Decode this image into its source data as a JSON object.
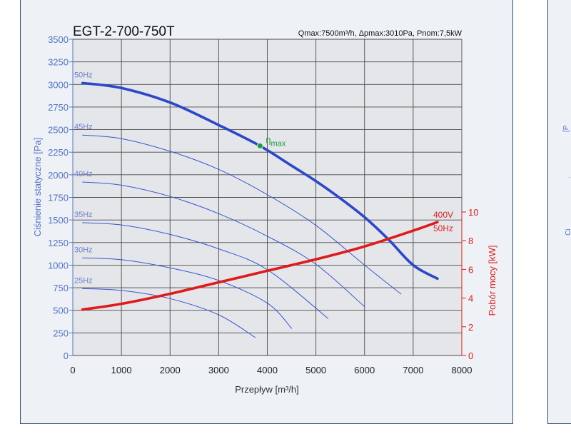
{
  "chart_data": {
    "type": "line",
    "title": "EGT-2-700-750T",
    "subtitle": "Qmax:7500m³/h, Δpmax:3010Pa, Pnom:7,5kW",
    "xlabel": "Przepływ [m³/h]",
    "ylabel": "Ciśnienie statyczne [Pa]",
    "y2label": "Pobór mocy [kW]",
    "xlim": [
      0,
      8000
    ],
    "ylim": [
      0,
      3500
    ],
    "y2lim": [
      0,
      10
    ],
    "x_ticks": [
      0,
      1000,
      2000,
      3000,
      4000,
      5000,
      6000,
      7000,
      8000
    ],
    "y_ticks": [
      0,
      250,
      500,
      750,
      1000,
      1250,
      1500,
      1750,
      2000,
      2250,
      2500,
      2750,
      3000,
      3250,
      3500
    ],
    "y2_ticks": [
      0,
      2,
      4,
      6,
      8,
      10
    ],
    "grid": true,
    "series": [
      {
        "name": "50Hz",
        "axis": "left",
        "bold": true,
        "color": "#2b48c9",
        "x": [
          200,
          1000,
          2000,
          3000,
          3850,
          4500,
          5000,
          5500,
          6000,
          6500,
          7000,
          7500
        ],
        "y": [
          3015,
          2960,
          2800,
          2550,
          2320,
          2100,
          1930,
          1740,
          1530,
          1280,
          1000,
          850
        ]
      },
      {
        "name": "45Hz",
        "axis": "left",
        "color": "#3a56d4",
        "x": [
          200,
          1000,
          2000,
          3000,
          4000,
          5000,
          6000,
          6750
        ],
        "y": [
          2440,
          2400,
          2260,
          2060,
          1780,
          1440,
          1000,
          680
        ]
      },
      {
        "name": "40Hz",
        "axis": "left",
        "color": "#3a56d4",
        "x": [
          200,
          1000,
          2000,
          3000,
          4000,
          5000,
          6000
        ],
        "y": [
          1920,
          1885,
          1760,
          1570,
          1320,
          1010,
          540
        ]
      },
      {
        "name": "35Hz",
        "axis": "left",
        "color": "#3a56d4",
        "x": [
          200,
          1000,
          2000,
          3000,
          4000,
          5250
        ],
        "y": [
          1470,
          1445,
          1340,
          1180,
          950,
          410
        ]
      },
      {
        "name": "30Hz",
        "axis": "left",
        "color": "#3a56d4",
        "x": [
          200,
          1000,
          2000,
          3000,
          4000,
          4500
        ],
        "y": [
          1080,
          1060,
          970,
          830,
          580,
          300
        ]
      },
      {
        "name": "25Hz",
        "axis": "left",
        "color": "#3a56d4",
        "x": [
          200,
          1000,
          2000,
          3000,
          3750
        ],
        "y": [
          740,
          720,
          630,
          450,
          200
        ]
      },
      {
        "name": "400V 50Hz",
        "axis": "right",
        "bold": true,
        "color": "#e01a1a",
        "x": [
          200,
          1000,
          2000,
          3000,
          4000,
          5000,
          6000,
          7000,
          7500
        ],
        "y": [
          3.2,
          3.6,
          4.3,
          5.1,
          5.9,
          6.7,
          7.6,
          8.7,
          9.3
        ]
      }
    ],
    "annotations": [
      {
        "text": "η",
        "sub": "max",
        "x": 3850,
        "y": 2320,
        "color": "#1f9a3e"
      }
    ],
    "curve_labels": [
      "50Hz",
      "45Hz",
      "40Hz",
      "35Hz",
      "30Hz",
      "25Hz"
    ],
    "power_label_top": "400V",
    "power_label_bottom": "50Hz"
  }
}
